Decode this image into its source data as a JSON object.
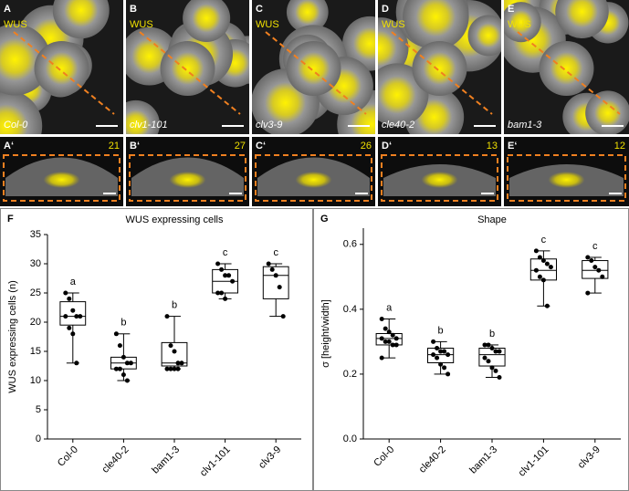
{
  "image_panels": [
    {
      "label": "A",
      "stain": "WUS",
      "genotype": "Col-0"
    },
    {
      "label": "B",
      "stain": "WUS",
      "genotype": "clv1-101"
    },
    {
      "label": "C",
      "stain": "WUS",
      "genotype": "clv3-9"
    },
    {
      "label": "D",
      "stain": "WUS",
      "genotype": "cle40-2"
    },
    {
      "label": "E",
      "stain": "WUS",
      "genotype": "bam1-3"
    }
  ],
  "section_panels": [
    {
      "label": "A‘",
      "count": 21
    },
    {
      "label": "B‘",
      "count": 27
    },
    {
      "label": "C‘",
      "count": 26
    },
    {
      "label": "D‘",
      "count": 13
    },
    {
      "label": "E‘",
      "count": 12
    }
  ],
  "chart_data": [
    {
      "type": "box",
      "panel": "F",
      "title": "WUS expressing cells",
      "ylabel": "WUS expressing cells (n)",
      "categories": [
        "Col-0",
        "cle40-2",
        "bam1-3",
        "clv1-101",
        "clv3-9"
      ],
      "ylim": [
        0,
        35
      ],
      "yticks": [
        0,
        5,
        10,
        15,
        20,
        25,
        30,
        35
      ],
      "boxes": [
        {
          "min": 13,
          "q1": 19.5,
          "median": 21,
          "q3": 23.5,
          "max": 25,
          "points": [
            25,
            24,
            22,
            21,
            21,
            21,
            19,
            18,
            13
          ]
        },
        {
          "min": 10,
          "q1": 12,
          "median": 13,
          "q3": 14,
          "max": 18,
          "points": [
            18,
            16,
            14,
            13,
            13,
            12,
            12,
            11,
            10
          ]
        },
        {
          "min": 12,
          "q1": 12.5,
          "median": 13,
          "q3": 16.5,
          "max": 21,
          "points": [
            21,
            16,
            15,
            13,
            13,
            12,
            12,
            12,
            12
          ]
        },
        {
          "min": 24,
          "q1": 25,
          "median": 27,
          "q3": 29,
          "max": 30,
          "points": [
            30,
            29,
            28,
            28,
            27,
            25,
            25,
            24
          ]
        },
        {
          "min": 21,
          "q1": 24,
          "median": 28,
          "q3": 29.5,
          "max": 30,
          "points": [
            30,
            29,
            28,
            26,
            21
          ]
        }
      ],
      "letters": [
        "a",
        "b",
        "b",
        "c",
        "c"
      ]
    },
    {
      "type": "box",
      "panel": "G",
      "title": "Shape",
      "ylabel": "σ [height/width]",
      "categories": [
        "Col-0",
        "cle40-2",
        "bam1-3",
        "clv1-101",
        "clv3-9"
      ],
      "ylim": [
        0,
        0.65
      ],
      "yticks": [
        {
          "value": 0,
          "label": "0.0"
        },
        0.2,
        0.4,
        0.6
      ],
      "boxes": [
        {
          "min": 0.25,
          "q1": 0.29,
          "median": 0.31,
          "q3": 0.325,
          "max": 0.37,
          "points": [
            0.37,
            0.34,
            0.33,
            0.32,
            0.31,
            0.31,
            0.3,
            0.3,
            0.29,
            0.29,
            0.25
          ]
        },
        {
          "min": 0.2,
          "q1": 0.235,
          "median": 0.26,
          "q3": 0.28,
          "max": 0.3,
          "points": [
            0.3,
            0.28,
            0.27,
            0.27,
            0.26,
            0.26,
            0.25,
            0.23,
            0.22,
            0.2
          ]
        },
        {
          "min": 0.19,
          "q1": 0.225,
          "median": 0.26,
          "q3": 0.28,
          "max": 0.29,
          "points": [
            0.29,
            0.29,
            0.28,
            0.27,
            0.27,
            0.25,
            0.24,
            0.22,
            0.21,
            0.19
          ]
        },
        {
          "min": 0.41,
          "q1": 0.49,
          "median": 0.52,
          "q3": 0.555,
          "max": 0.58,
          "points": [
            0.58,
            0.56,
            0.55,
            0.54,
            0.53,
            0.52,
            0.5,
            0.49,
            0.41
          ]
        },
        {
          "min": 0.45,
          "q1": 0.495,
          "median": 0.52,
          "q3": 0.55,
          "max": 0.56,
          "points": [
            0.56,
            0.55,
            0.53,
            0.52,
            0.5,
            0.45
          ]
        }
      ],
      "letters": [
        "a",
        "b",
        "b",
        "c",
        "c"
      ]
    }
  ]
}
